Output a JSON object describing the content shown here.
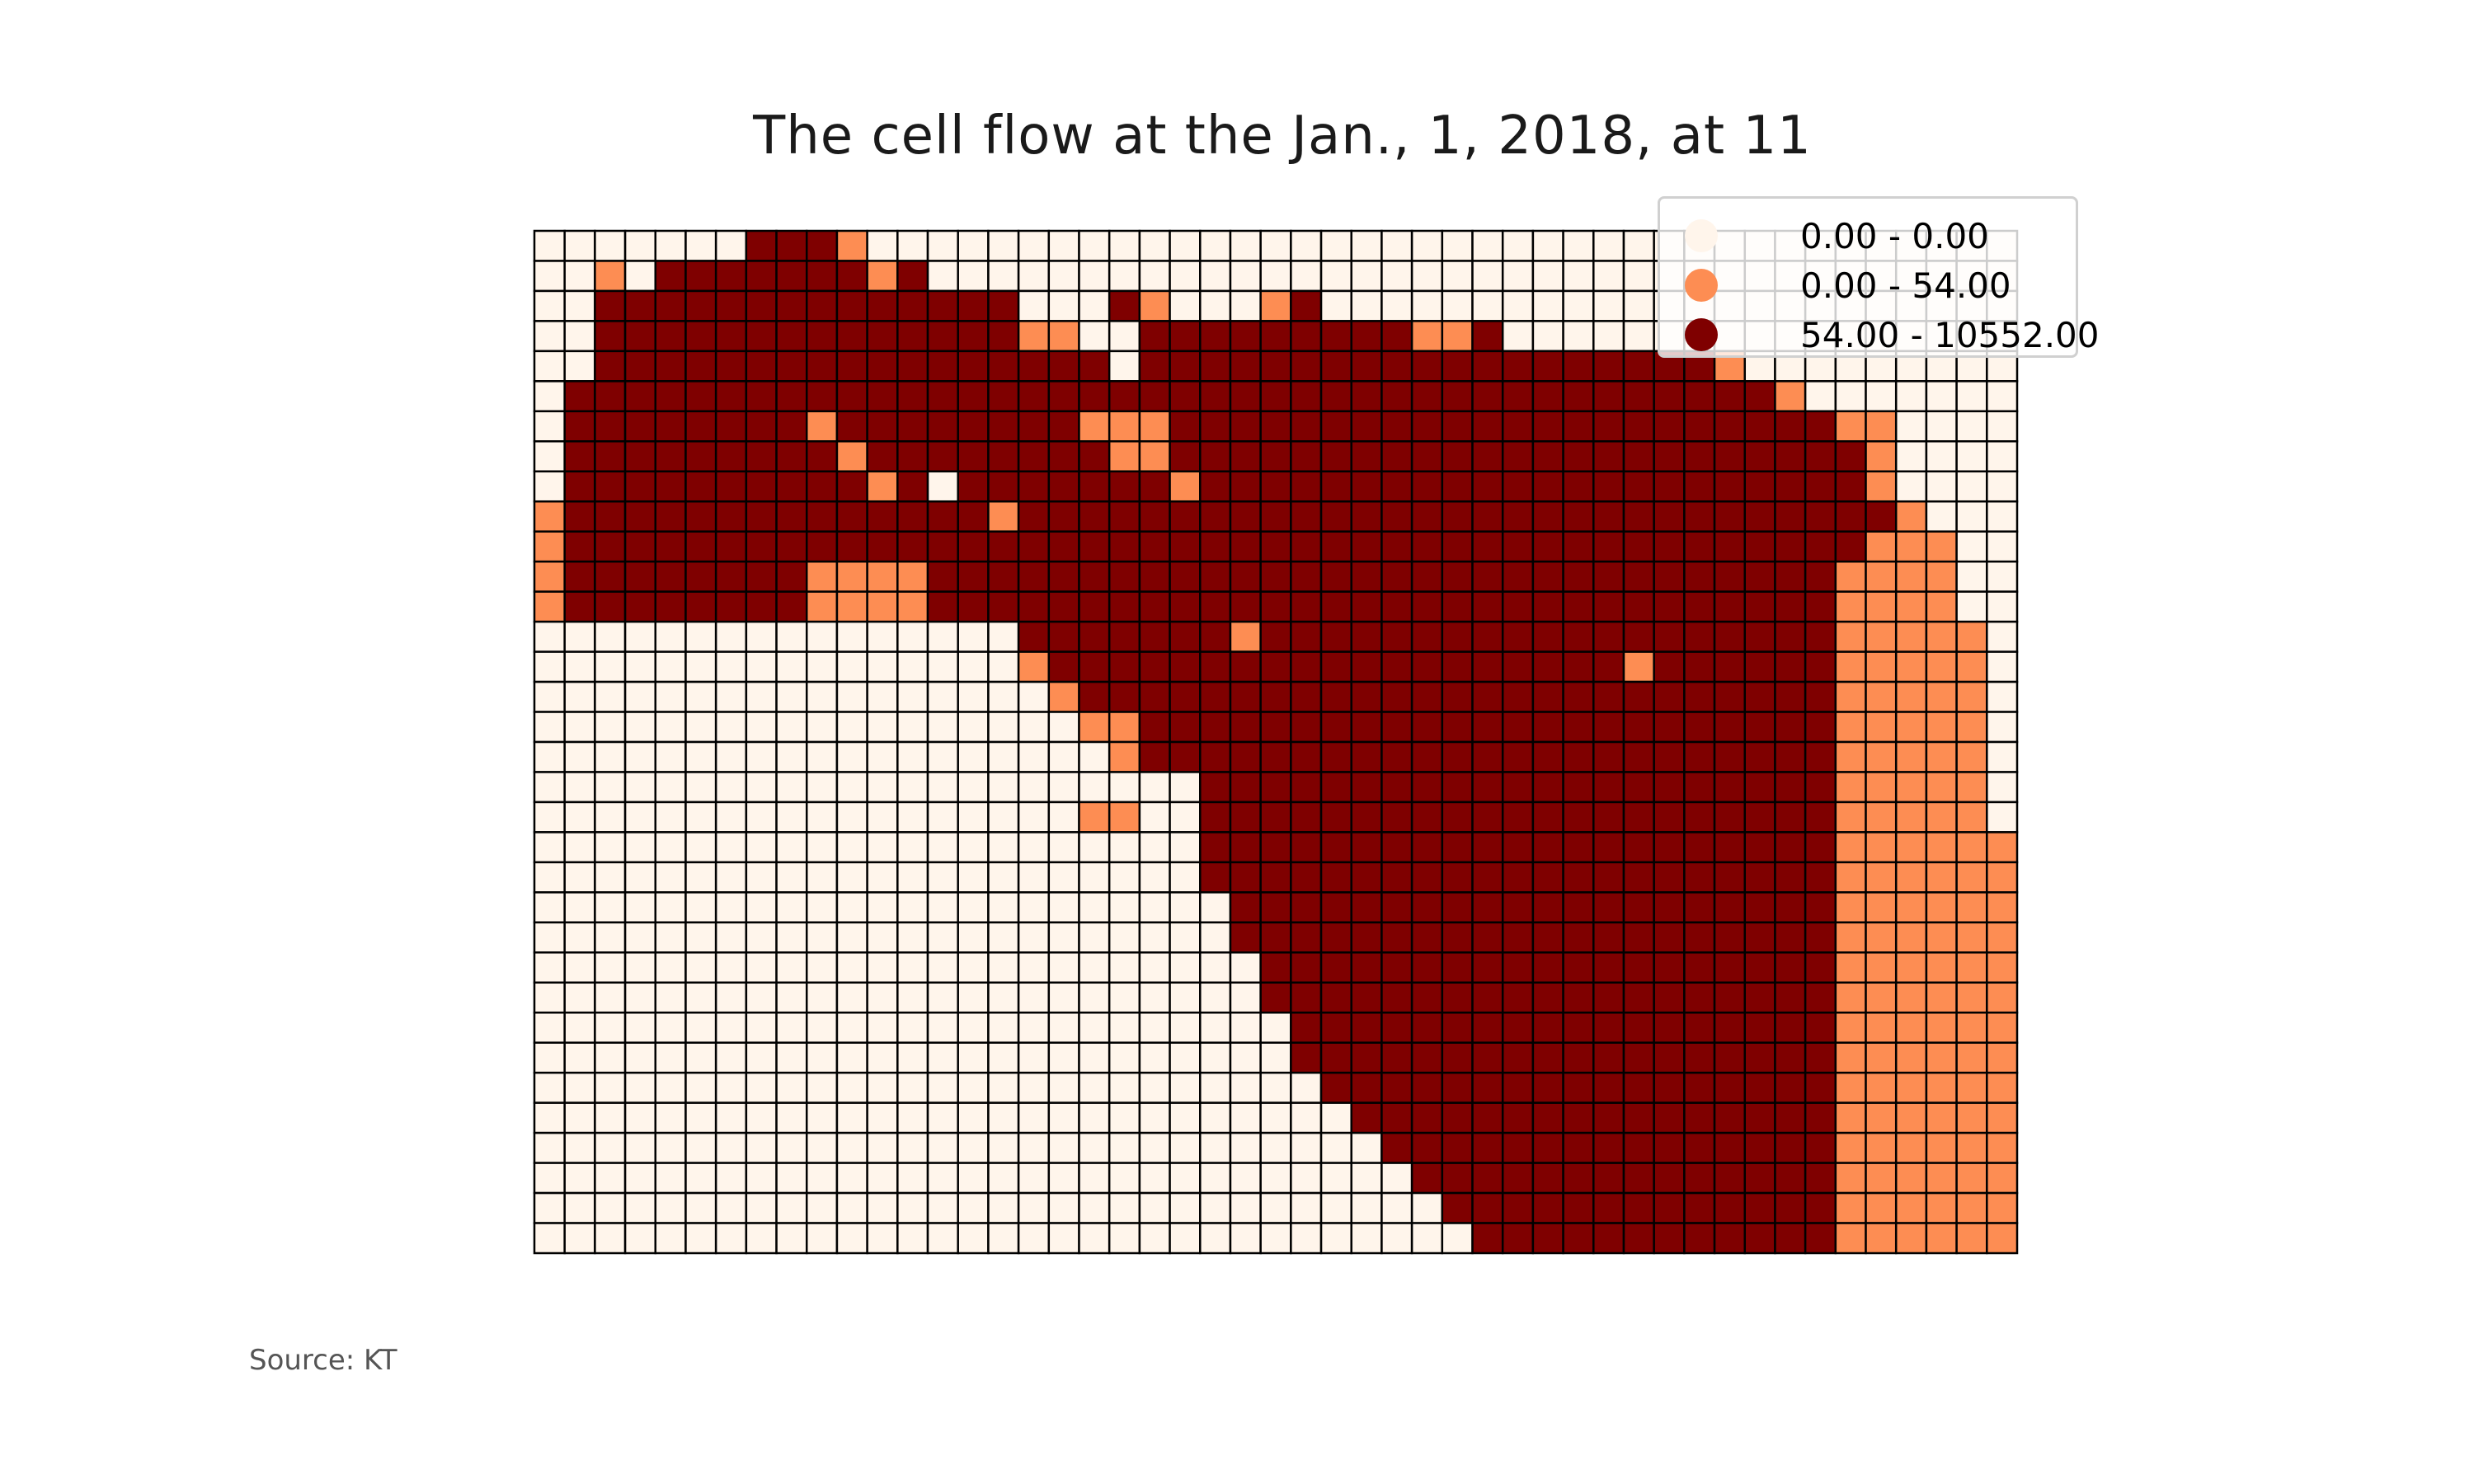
{
  "title": "The cell flow at the Jan., 1, 2018, at 11",
  "source": "Source: KT",
  "legend": {
    "placement": "top-right",
    "items": [
      {
        "label": "0.00 - 0.00",
        "color": "#fff5eb"
      },
      {
        "label": "0.00 - 54.00",
        "color": "#fd8d53"
      },
      {
        "label": "54.00 - 10552.00",
        "color": "#7f0000"
      }
    ]
  },
  "colors": {
    "empty": "#fff5eb",
    "low": "#fd8d53",
    "high": "#7f0000",
    "grid_line": "#000000"
  },
  "chart_data": {
    "type": "heatmap",
    "cols": 49,
    "rows": 34,
    "legend": "0 = 0.00 - 0.00, 1 = 0.00 - 54.00, 2 = 54.00 - 10552.00",
    "classes": [
      "0000000222100000000000000000000000000000000000000",
      "0010222222212000000000000000000000000000000000000",
      "0022222222222222000210001200000000000000000000000",
      "0022222222222222110022222222211200000000000000000",
      "0022222222222222222022222222222222222221000000000",
      "0222222222222222222222222222222222222222210000000",
      "0222222221222222221112222222222222222222222110000",
      "0222222222122222222112222222222222222222222210000",
      "0222222222212022222221222222222222222222222210000",
      "1222222222222221222222222222222222222222222221000",
      "1222222222222222222222222222222222222222222211100",
      "1222222221111222222222222222222222222222222111100",
      "1222222221111222222222222222222222222222222111100",
      "0000000000000000222222212222222222222222222111110",
      "0000000000000000122222222222222222221222222111110",
      "0000000000000000012222222222222222222222222111110",
      "0000000000000000001122222222222222222222222111110",
      "0000000000000000000122222222222222222222222111110",
      "0000000000000000000000222222222222222222222111110",
      "0000000000000000001100222222222222222222222111110",
      "0000000000000000000000222222222222222222222111111",
      "0000000000000000000000222222222222222222222111111",
      "0000000000000000000000022222222222222222222111111",
      "0000000000000000000000022222222222222222222111111",
      "0000000000000000000000002222222222222222222111111",
      "0000000000000000000000002222222222222222222111111",
      "0000000000000000000000000222222222222222222111111",
      "0000000000000000000000000222222222222222222111111",
      "0000000000000000000000000022222222222222222111111",
      "0000000000000000000000000002222222222222222111111",
      "0000000000000000000000000000222222222222222111111",
      "0000000000000000000000000000022222222222222111111",
      "0000000000000000000000000000002222222222222111111",
      "0000000000000000000000000000000222222222222111111"
    ]
  }
}
